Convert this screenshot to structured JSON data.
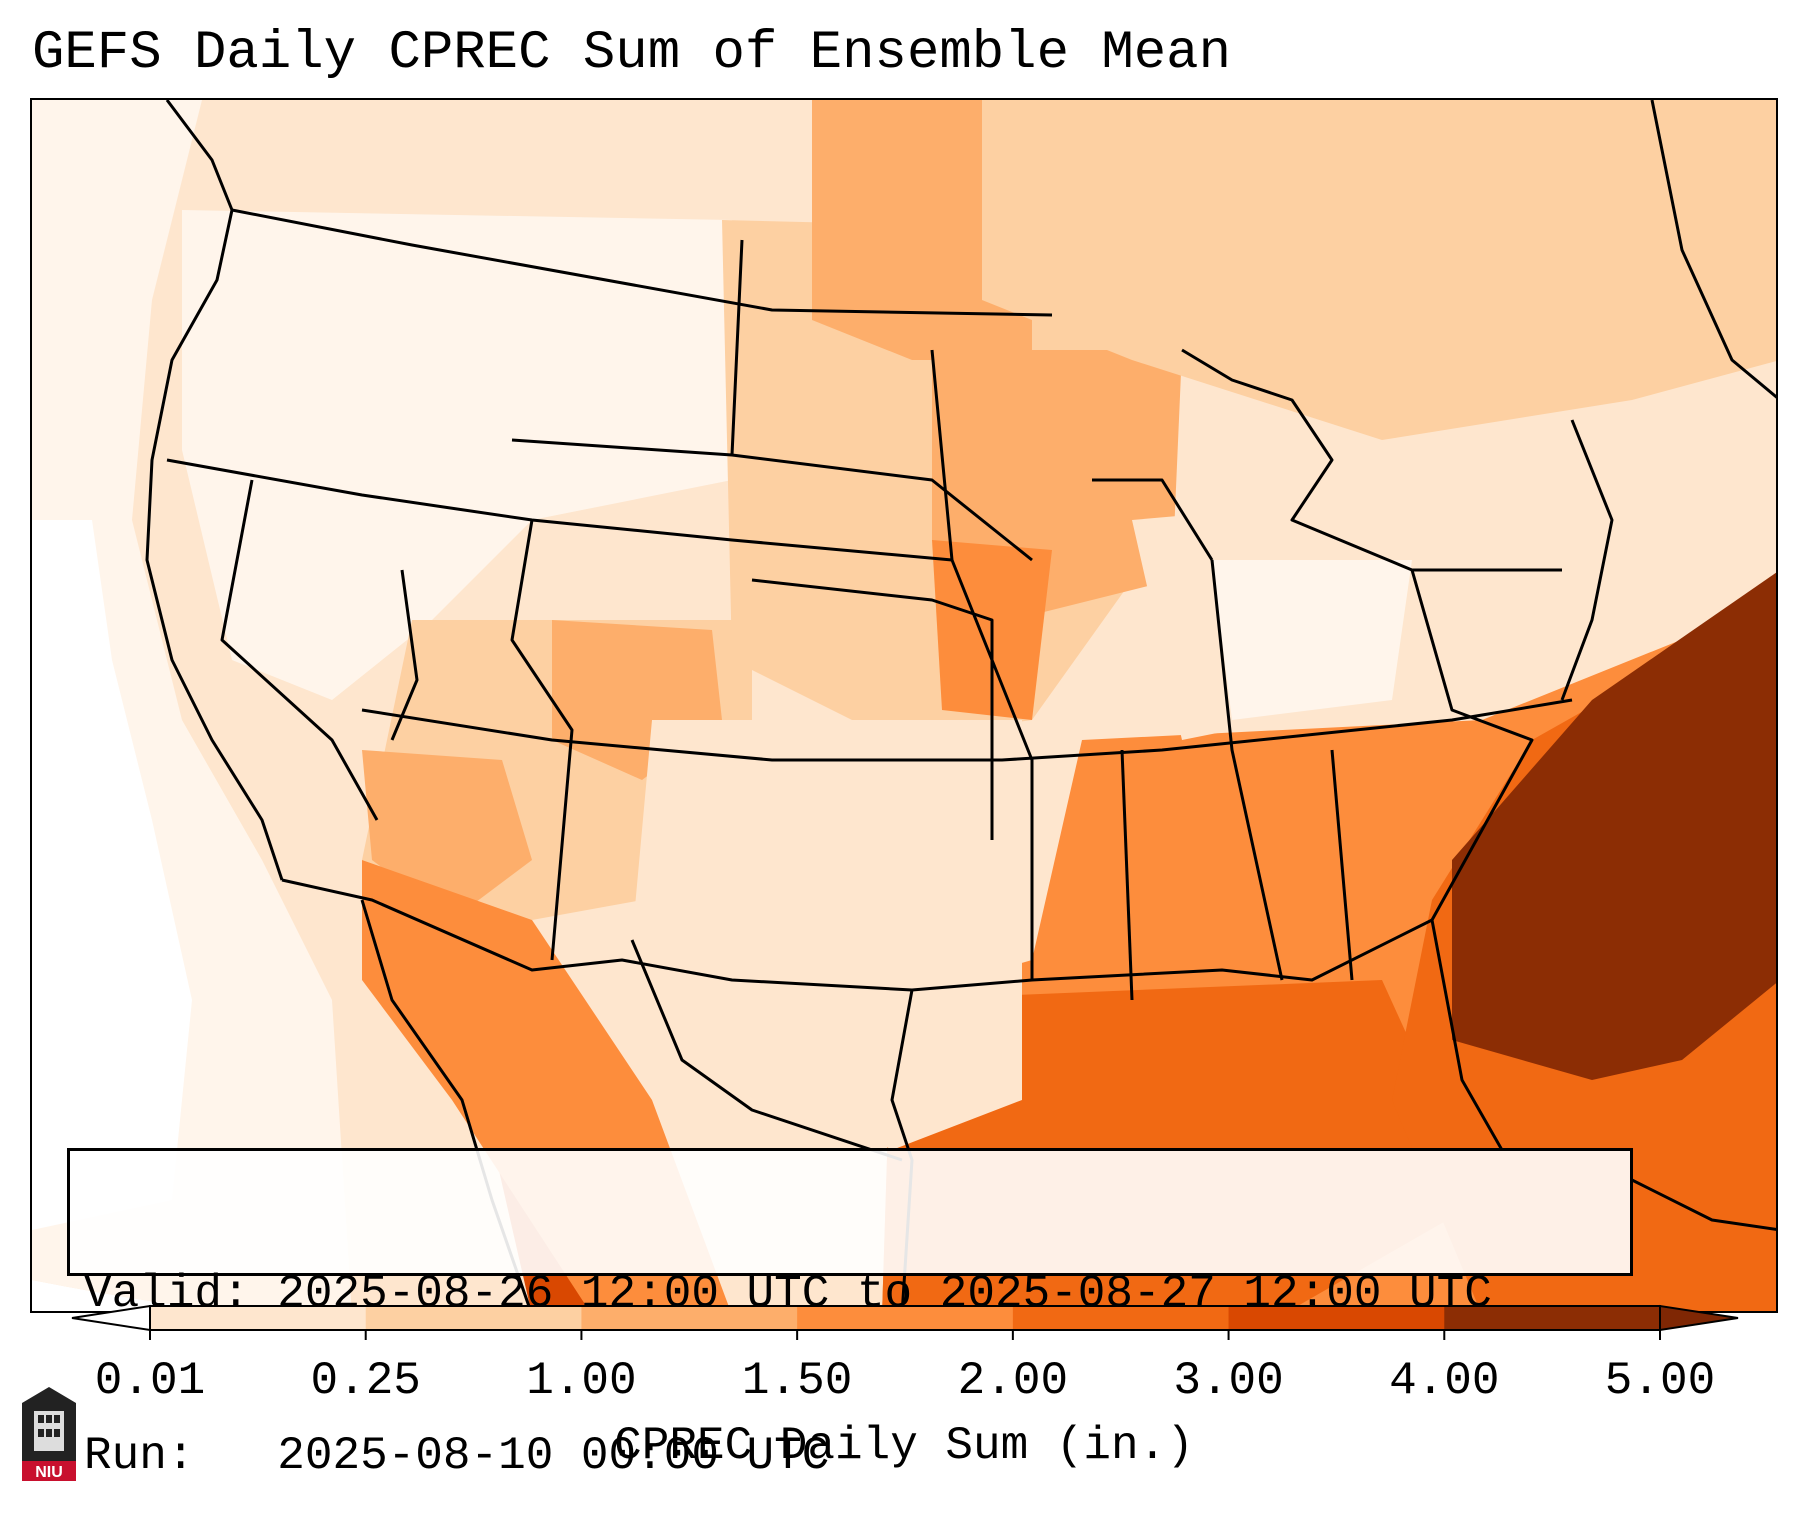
{
  "title": "GEFS Daily CPREC Sum of Ensemble Mean",
  "info": {
    "valid_label": "Valid:",
    "valid_text": "2025-08-26 12:00 UTC to 2025-08-27 12:00 UTC",
    "run_label": "Run:",
    "run_text": "2025-08-10 00:00 UTC"
  },
  "colorbar": {
    "label": "CPREC Daily Sum (in.)",
    "ticks": [
      "0.01",
      "0.25",
      "1.00",
      "1.50",
      "2.00",
      "3.00",
      "4.00",
      "5.00"
    ],
    "colors": [
      "#fff5eb",
      "#fee6ce",
      "#fdd0a2",
      "#fdae6b",
      "#fd8d3c",
      "#f16913",
      "#d94801",
      "#8c2d04"
    ],
    "under_color": "#ffffff",
    "over_color": "#7f2704"
  },
  "logo": {
    "text": "NIU",
    "icon": "niu-logo-icon",
    "color": "#c8102e"
  },
  "icons": {
    "map": "precipitation-map-icon"
  }
}
